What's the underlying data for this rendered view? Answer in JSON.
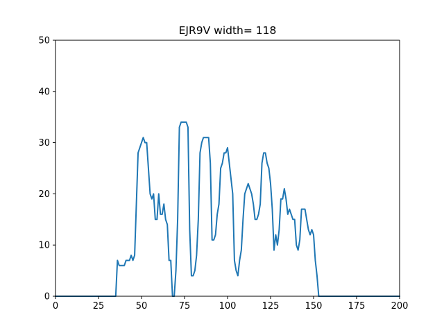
{
  "chart_data": {
    "type": "line",
    "title": "EJR9V width= 118",
    "xlabel": "",
    "ylabel": "",
    "xlim": [
      0,
      200
    ],
    "ylim": [
      0,
      50
    ],
    "xticks": [
      0,
      25,
      50,
      75,
      100,
      125,
      150,
      175,
      200
    ],
    "yticks": [
      0,
      10,
      20,
      30,
      40,
      50
    ],
    "grid": false,
    "colors": {
      "line": "#1f77b4",
      "axes": "#000000",
      "background": "#ffffff"
    },
    "series": [
      {
        "x": [
          0,
          35,
          36,
          37,
          38,
          39,
          40,
          41,
          42,
          43,
          44,
          45,
          46,
          47,
          48,
          49,
          50,
          51,
          52,
          53,
          54,
          55,
          56,
          57,
          58,
          59,
          60,
          61,
          62,
          63,
          64,
          65,
          66,
          67,
          68,
          69,
          70,
          71,
          72,
          73,
          74,
          75,
          76,
          77,
          78,
          79,
          80,
          81,
          82,
          83,
          84,
          85,
          86,
          87,
          88,
          89,
          90,
          91,
          92,
          93,
          94,
          95,
          96,
          97,
          98,
          99,
          100,
          101,
          102,
          103,
          104,
          105,
          106,
          107,
          108,
          109,
          110,
          111,
          112,
          113,
          114,
          115,
          116,
          117,
          118,
          119,
          120,
          121,
          122,
          123,
          124,
          125,
          126,
          127,
          128,
          129,
          130,
          131,
          132,
          133,
          134,
          135,
          136,
          137,
          138,
          139,
          140,
          141,
          142,
          143,
          144,
          145,
          146,
          147,
          148,
          149,
          150,
          151,
          152,
          153,
          200
        ],
        "y": [
          0,
          0,
          7,
          6,
          6,
          6,
          6,
          7,
          7,
          7,
          8,
          7,
          8,
          18,
          28,
          29,
          30,
          31,
          30,
          30,
          25,
          20,
          19,
          20,
          15,
          15,
          20,
          16,
          16,
          18,
          15,
          14,
          7,
          7,
          0,
          0,
          5,
          15,
          33,
          34,
          34,
          34,
          34,
          33,
          13,
          4,
          4,
          5,
          8,
          15,
          28,
          30,
          31,
          31,
          31,
          31,
          26,
          11,
          11,
          12,
          16,
          18,
          25,
          26,
          28,
          28,
          29,
          26,
          23,
          20,
          7,
          5,
          4,
          7,
          9,
          15,
          20,
          21,
          22,
          21,
          20,
          18,
          15,
          15,
          16,
          18,
          26,
          28,
          28,
          26,
          25,
          22,
          17,
          9,
          12,
          10,
          13,
          19,
          19,
          21,
          19,
          16,
          17,
          16,
          15,
          15,
          10,
          9,
          11,
          17,
          17,
          17,
          15,
          13,
          12,
          13,
          12,
          7,
          4,
          0,
          0
        ]
      }
    ]
  }
}
